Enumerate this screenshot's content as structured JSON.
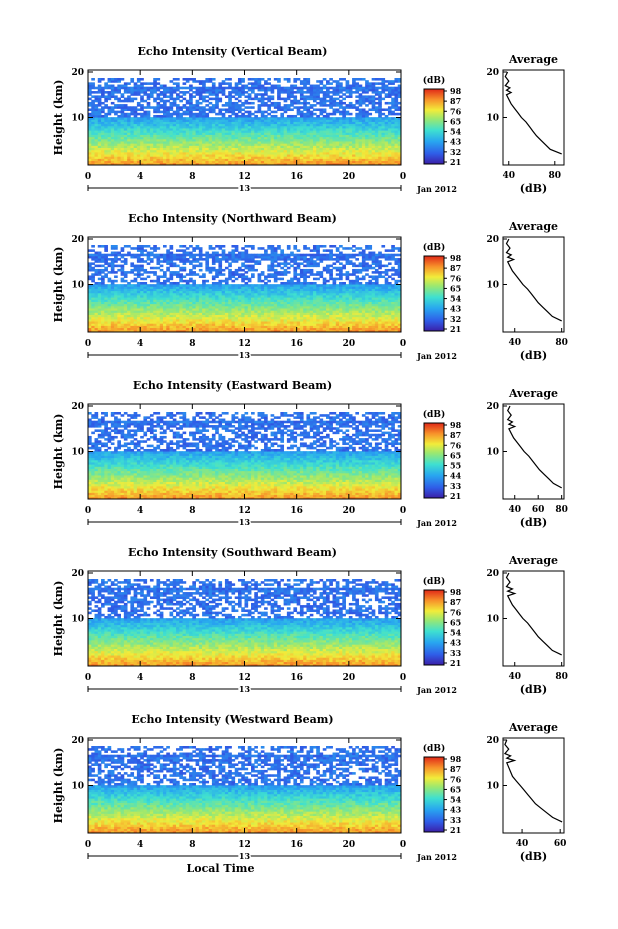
{
  "chart_data": [
    {
      "type": "heatmap",
      "title": "Echo Intensity (Vertical Beam)",
      "ylabel": "Height (km)",
      "xticks": [
        "0",
        "4",
        "8",
        "12",
        "16",
        "20",
        "0"
      ],
      "yticks": [
        "20",
        "10"
      ],
      "ylim": [
        0,
        20
      ],
      "date_label": "Jan 2012",
      "day_label": "13",
      "colorbar": {
        "unit": "(dB)",
        "ticks": [
          "98",
          "87",
          "76",
          "65",
          "54",
          "43",
          "32",
          "21"
        ]
      },
      "profile": {
        "title": "Average",
        "xlabel": "(dB)",
        "xticks": [
          "40",
          "80"
        ],
        "yticks": [
          "20",
          "10"
        ],
        "xlim": [
          35,
          88
        ],
        "heights": [
          2,
          3,
          4,
          5,
          6,
          7,
          8,
          9,
          10,
          11,
          12,
          13,
          14,
          15,
          15.5,
          16,
          16.5,
          17,
          18,
          19,
          20
        ],
        "values": [
          86,
          76,
          72,
          68,
          64,
          61,
          58,
          55,
          51,
          48,
          45,
          42,
          40,
          38,
          42,
          38,
          41,
          37,
          40,
          37,
          39
        ]
      }
    },
    {
      "type": "heatmap",
      "title": "Echo Intensity (Northward Beam)",
      "ylabel": "Height (km)",
      "xticks": [
        "0",
        "4",
        "8",
        "12",
        "16",
        "20",
        "0"
      ],
      "yticks": [
        "20",
        "10"
      ],
      "ylim": [
        0,
        20
      ],
      "date_label": "Jan 2012",
      "day_label": "13",
      "colorbar": {
        "unit": "(dB)",
        "ticks": [
          "98",
          "87",
          "76",
          "65",
          "54",
          "43",
          "32",
          "21"
        ]
      },
      "profile": {
        "title": "Average",
        "xlabel": "(dB)",
        "xticks": [
          "40",
          "80"
        ],
        "yticks": [
          "20",
          "10"
        ],
        "xlim": [
          30,
          82
        ],
        "heights": [
          2,
          3,
          4,
          5,
          6,
          7,
          8,
          9,
          10,
          11,
          12,
          13,
          14,
          15,
          15.5,
          16,
          16.5,
          17,
          18,
          19,
          20
        ],
        "values": [
          80,
          72,
          68,
          64,
          60,
          57,
          54,
          51,
          47,
          44,
          41,
          38,
          36,
          34,
          39,
          34,
          37,
          33,
          36,
          33,
          35
        ]
      }
    },
    {
      "type": "heatmap",
      "title": "Echo Intensity (Eastward Beam)",
      "ylabel": "Height (km)",
      "xticks": [
        "0",
        "4",
        "8",
        "12",
        "16",
        "20",
        "0"
      ],
      "yticks": [
        "20",
        "10"
      ],
      "ylim": [
        0,
        20
      ],
      "date_label": "Jan 2012",
      "day_label": "13",
      "colorbar": {
        "unit": "(dB)",
        "ticks": [
          "98",
          "87",
          "76",
          "65",
          "55",
          "44",
          "33",
          "21"
        ]
      },
      "profile": {
        "title": "Average",
        "xlabel": "(dB)",
        "xticks": [
          "40",
          "60",
          "80"
        ],
        "yticks": [
          "20",
          "10"
        ],
        "xlim": [
          30,
          82
        ],
        "heights": [
          2,
          3,
          4,
          5,
          6,
          7,
          8,
          9,
          10,
          11,
          12,
          13,
          14,
          15,
          15.5,
          16,
          16.5,
          17,
          18,
          19,
          20
        ],
        "values": [
          80,
          73,
          69,
          65,
          61,
          58,
          55,
          52,
          48,
          45,
          42,
          39,
          37,
          35,
          40,
          35,
          38,
          34,
          37,
          34,
          36
        ]
      }
    },
    {
      "type": "heatmap",
      "title": "Echo Intensity (Southward Beam)",
      "ylabel": "Height (km)",
      "xticks": [
        "0",
        "4",
        "8",
        "12",
        "16",
        "20",
        "0"
      ],
      "yticks": [
        "20",
        "10"
      ],
      "ylim": [
        0,
        20
      ],
      "date_label": "Jan 2012",
      "day_label": "13",
      "colorbar": {
        "unit": "(dB)",
        "ticks": [
          "98",
          "87",
          "76",
          "65",
          "54",
          "43",
          "33",
          "21"
        ]
      },
      "profile": {
        "title": "Average",
        "xlabel": "(dB)",
        "xticks": [
          "40",
          "80"
        ],
        "yticks": [
          "20",
          "10"
        ],
        "xlim": [
          30,
          82
        ],
        "heights": [
          2,
          3,
          4,
          5,
          6,
          7,
          8,
          9,
          10,
          11,
          12,
          13,
          14,
          15,
          15.5,
          16,
          16.5,
          17,
          18,
          19,
          20
        ],
        "values": [
          80,
          72,
          68,
          64,
          60,
          57,
          54,
          51,
          47,
          44,
          41,
          38,
          36,
          34,
          40,
          34,
          38,
          33,
          36,
          33,
          35
        ]
      }
    },
    {
      "type": "heatmap",
      "title": "Echo Intensity (Westward Beam)",
      "ylabel": "Height (km)",
      "xticks": [
        "0",
        "4",
        "8",
        "12",
        "16",
        "20",
        "0"
      ],
      "yticks": [
        "20",
        "10"
      ],
      "ylim": [
        0,
        20
      ],
      "date_label": "Jan 2012",
      "day_label": "13",
      "xlabel": "Local Time",
      "colorbar": {
        "unit": "(dB)",
        "ticks": [
          "98",
          "87",
          "76",
          "65",
          "54",
          "43",
          "33",
          "21"
        ]
      },
      "profile": {
        "title": "Average",
        "xlabel": "(dB)",
        "xticks": [
          "40",
          "60"
        ],
        "yticks": [
          "20",
          "10"
        ],
        "xlim": [
          30,
          62
        ],
        "heights": [
          2,
          3,
          4,
          5,
          6,
          7,
          8,
          9,
          10,
          11,
          12,
          13,
          14,
          15,
          15.5,
          16,
          16.5,
          17,
          18,
          19,
          20
        ],
        "values": [
          61,
          56,
          53,
          50,
          47,
          45,
          43,
          41,
          39,
          37,
          35,
          34,
          33,
          32,
          36,
          32,
          34,
          31,
          33,
          31,
          32
        ]
      }
    }
  ]
}
